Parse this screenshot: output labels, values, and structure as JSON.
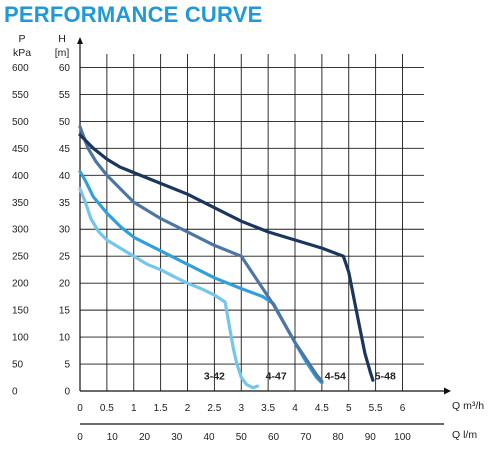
{
  "chart_data": {
    "type": "line",
    "title": "PERFORMANCE CURVE",
    "y_axis_head_label": "H",
    "y_axis_head_unit": "[m]",
    "y2_axis_label": "P",
    "y2_axis_unit": "kPa",
    "x_axis_unit": "Q m³/h",
    "x2_axis_unit": "Q l/m",
    "xlim": [
      0,
      6.4
    ],
    "ylim": [
      0,
      62.5
    ],
    "x_ticks": [
      "0",
      "0.5",
      "1",
      "1.5",
      "2",
      "2.5",
      "3",
      "3.5",
      "4",
      "4.5",
      "5",
      "5.5",
      "6"
    ],
    "x_tick_values": [
      0,
      0.5,
      1,
      1.5,
      2,
      2.5,
      3,
      3.5,
      4,
      4.5,
      5,
      5.5,
      6
    ],
    "x2_ticks": [
      "0",
      "10",
      "20",
      "30",
      "40",
      "50",
      "60",
      "70",
      "80",
      "90",
      "100"
    ],
    "y_ticks": [
      "0",
      "5",
      "10",
      "15",
      "20",
      "25",
      "30",
      "35",
      "40",
      "45",
      "50",
      "55",
      "60"
    ],
    "y_tick_values": [
      0,
      5,
      10,
      15,
      20,
      25,
      30,
      35,
      40,
      45,
      50,
      55,
      60
    ],
    "y2_ticks": [
      "0",
      "50",
      "100",
      "150",
      "200",
      "250",
      "300",
      "350",
      "400",
      "450",
      "500",
      "550",
      "600"
    ],
    "grid": true,
    "series": [
      {
        "name": "3-42",
        "color": "#74c6ea",
        "x": [
          0,
          0.1,
          0.2,
          0.35,
          0.5,
          0.75,
          1.0,
          1.25,
          1.5,
          1.75,
          2.0,
          2.25,
          2.5,
          2.7,
          2.78,
          2.85,
          2.92,
          3.0,
          3.1,
          3.22,
          3.3
        ],
        "y": [
          37.5,
          35,
          32,
          29.5,
          28,
          26.5,
          25,
          23.5,
          22.5,
          21.2,
          20,
          19,
          17.8,
          16.5,
          12,
          8,
          5,
          2.5,
          1.2,
          0.6,
          0.9
        ]
      },
      {
        "name": "4-47",
        "color": "#2fa0dc",
        "x": [
          0,
          0.1,
          0.25,
          0.5,
          0.75,
          1.0,
          1.5,
          2.0,
          2.5,
          3.0,
          3.4,
          3.6,
          3.8,
          4.0,
          4.2,
          4.4,
          4.5
        ],
        "y": [
          40.7,
          39,
          36,
          33,
          30.5,
          28.5,
          26,
          23.5,
          21,
          19,
          17.5,
          16.2,
          12.5,
          9,
          5.5,
          2.5,
          1.5
        ]
      },
      {
        "name": "4-54",
        "color": "#4f76a3",
        "x": [
          0,
          0.15,
          0.3,
          0.5,
          0.75,
          1.0,
          1.5,
          2.0,
          2.5,
          3.0,
          3.2,
          3.4,
          3.6,
          3.8,
          4.0,
          4.2,
          4.4,
          4.5
        ],
        "y": [
          49,
          45,
          42.5,
          40,
          37.5,
          35,
          32,
          29.5,
          27,
          25,
          22,
          19,
          16,
          12.5,
          9,
          6,
          3,
          1.8
        ]
      },
      {
        "name": "5-48",
        "color": "#1b365d",
        "x": [
          0,
          0.25,
          0.5,
          0.75,
          1.0,
          1.5,
          2.0,
          2.5,
          3.0,
          3.5,
          4.0,
          4.5,
          4.9,
          5.0,
          5.1,
          5.2,
          5.3,
          5.4,
          5.45
        ],
        "y": [
          47.5,
          45,
          43,
          41.5,
          40.5,
          38.5,
          36.5,
          34,
          31.5,
          29.5,
          28,
          26.5,
          25,
          22,
          17,
          12,
          7,
          3.5,
          2
        ]
      }
    ],
    "curve_labels": [
      {
        "text": "3-42",
        "x": 2.5,
        "y": 1.4
      },
      {
        "text": "4-47",
        "x": 3.65,
        "y": 1.4
      },
      {
        "text": "4-54",
        "x": 4.75,
        "y": 1.4
      },
      {
        "text": "5-48",
        "x": 5.68,
        "y": 1.4
      }
    ]
  }
}
